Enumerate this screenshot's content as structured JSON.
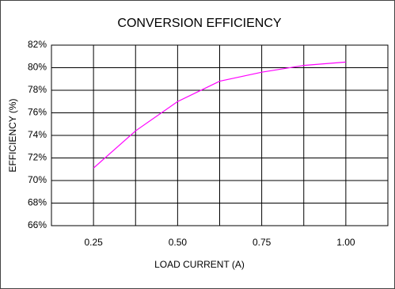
{
  "chart_data": {
    "type": "line",
    "title": "CONVERSION EFFICIENCY",
    "x_label": "LOAD CURRENT (A)",
    "y_label": "EFFICIENCY (%)",
    "x": [
      0.25,
      0.375,
      0.5,
      0.625,
      0.75,
      0.875,
      1.0
    ],
    "series": [
      {
        "name": "Efficiency",
        "color": "#ff00ff",
        "values": [
          71.1,
          74.4,
          77.0,
          78.8,
          79.6,
          80.2,
          80.5
        ]
      }
    ],
    "xlim": [
      0.125,
      1.125
    ],
    "xticks": [
      0.25,
      {
        "value": 0.5,
        "label": "0.50"
      },
      0.75,
      {
        "value": 1.0,
        "label": "1.00"
      }
    ],
    "ylim": [
      66,
      82
    ],
    "yticks": [
      {
        "value": 66,
        "label": "66%"
      },
      {
        "value": 68,
        "label": "68%"
      },
      {
        "value": 70,
        "label": "70%"
      },
      {
        "value": 72,
        "label": "72%"
      },
      {
        "value": 74,
        "label": "74%"
      },
      {
        "value": 76,
        "label": "76%"
      },
      {
        "value": 78,
        "label": "78%"
      },
      {
        "value": 80,
        "label": "80%"
      },
      {
        "value": 82,
        "label": "82%"
      }
    ],
    "grid": true
  }
}
